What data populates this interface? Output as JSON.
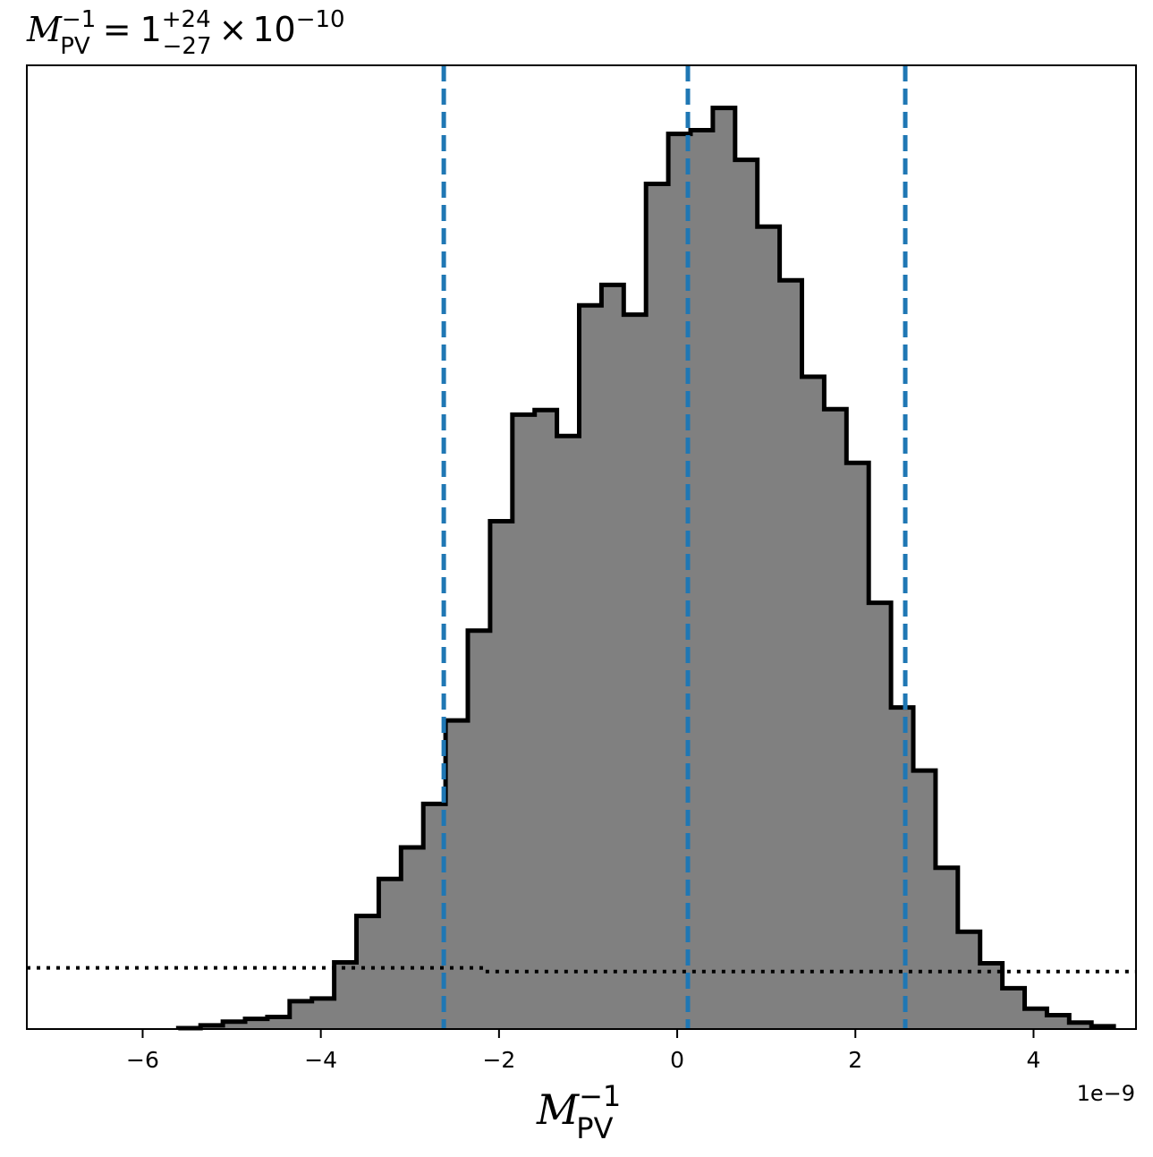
{
  "chart_data": {
    "type": "histogram",
    "title": {
      "symbol": "M",
      "symbol_sup": "−1",
      "symbol_sub": "PV",
      "equals": "=",
      "value": "1",
      "err_plus": "+24",
      "err_minus": "−27",
      "times": "×",
      "exp_base": "10",
      "exp_power": "−10"
    },
    "xlabel": {
      "symbol": "M",
      "symbol_sup": "−1",
      "symbol_sub": "PV"
    },
    "x_offset_label": "1e−9",
    "x_scale_units": "1e-9",
    "xlim": [
      -7.3,
      5.15
    ],
    "x_ticks": [
      {
        "value": -6,
        "label": "−6"
      },
      {
        "value": -4,
        "label": "−4"
      },
      {
        "value": -2,
        "label": "−2"
      },
      {
        "value": 0,
        "label": "0"
      },
      {
        "value": 2,
        "label": "2"
      },
      {
        "value": 4,
        "label": "4"
      }
    ],
    "y_ticks_shown": false,
    "bin_edges": [
      -5.6,
      -5.35,
      -5.1,
      -4.85,
      -4.6,
      -4.35,
      -4.1,
      -3.85,
      -3.6,
      -3.35,
      -3.1,
      -2.85,
      -2.6,
      -2.35,
      -2.1,
      -1.85,
      -1.6,
      -1.35,
      -1.1,
      -0.85,
      -0.6,
      -0.35,
      -0.1,
      0.15,
      0.4,
      0.65,
      0.9,
      1.15,
      1.4,
      1.65,
      1.9,
      2.15,
      2.4,
      2.65,
      2.9,
      3.15,
      3.4,
      3.65,
      3.9,
      4.15,
      4.4,
      4.65,
      4.9
    ],
    "bin_heights": [
      0.1,
      0.4,
      0.8,
      1.1,
      1.3,
      3.0,
      3.3,
      7.2,
      12.2,
      16.2,
      19.6,
      24.3,
      33.3,
      43.0,
      54.8,
      66.3,
      66.8,
      64.0,
      78.1,
      80.3,
      77.1,
      91.2,
      96.6,
      97.0,
      99.4,
      93.8,
      86.6,
      80.8,
      70.4,
      66.9,
      61.1,
      46.0,
      34.7,
      27.9,
      17.4,
      10.5,
      7.1,
      4.4,
      2.2,
      1.5,
      0.7,
      0.3
    ],
    "ylim": [
      0,
      104
    ],
    "fill_color": "#808080",
    "edge_color": "#000000",
    "quantile_lines": {
      "color": "#1f77b4",
      "style": "dashed",
      "values": [
        -2.62,
        0.12,
        2.56
      ]
    },
    "prior_line": {
      "color": "#000000",
      "style": "dotted",
      "x": [
        -7.3,
        -2.2,
        -2.2,
        5.15
      ],
      "y": [
        6.6,
        6.6,
        6.2,
        6.2
      ]
    }
  }
}
